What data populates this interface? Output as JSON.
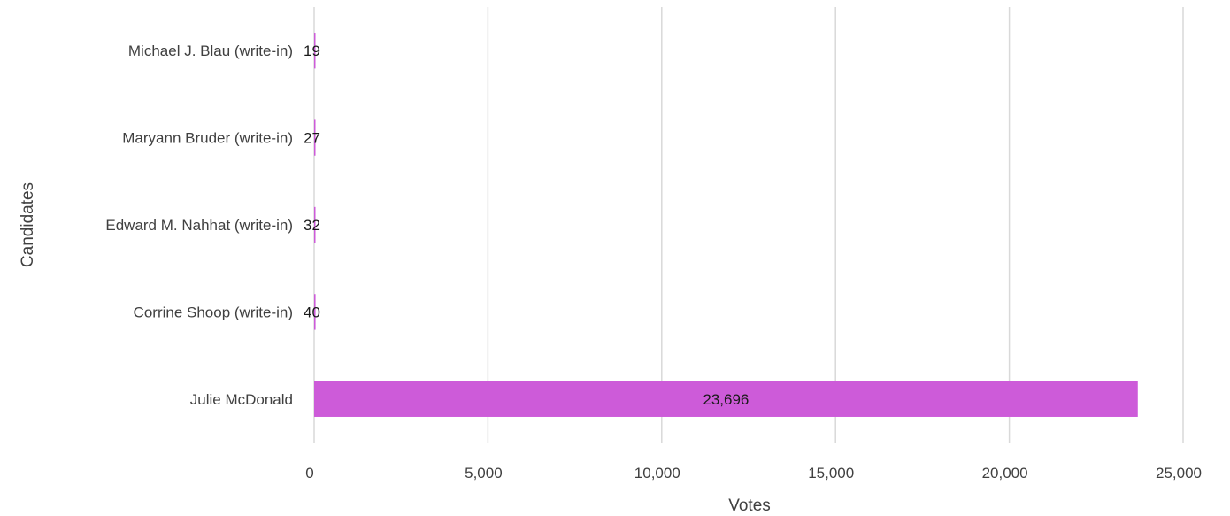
{
  "chart_data": {
    "type": "bar",
    "orientation": "horizontal",
    "categories": [
      "Julie McDonald",
      "Corrine Shoop (write-in)",
      "Edward M. Nahhat (write-in)",
      "Maryann Bruder (write-in)",
      "Michael J. Blau (write-in)"
    ],
    "values": [
      23696,
      40,
      32,
      27,
      19
    ],
    "data_labels": [
      "23,696",
      "40",
      "32",
      "27",
      "19"
    ],
    "xlabel": "Votes",
    "ylabel": "Candidates",
    "xlim": [
      0,
      25000
    ],
    "x_ticks": [
      0,
      5000,
      10000,
      15000,
      20000,
      25000
    ],
    "x_tick_labels": [
      "0",
      "5,000",
      "10,000",
      "15,000",
      "20,000",
      "25,000"
    ],
    "grid": "vertical",
    "legend": "none",
    "bar_color": "#cd5bd9"
  }
}
